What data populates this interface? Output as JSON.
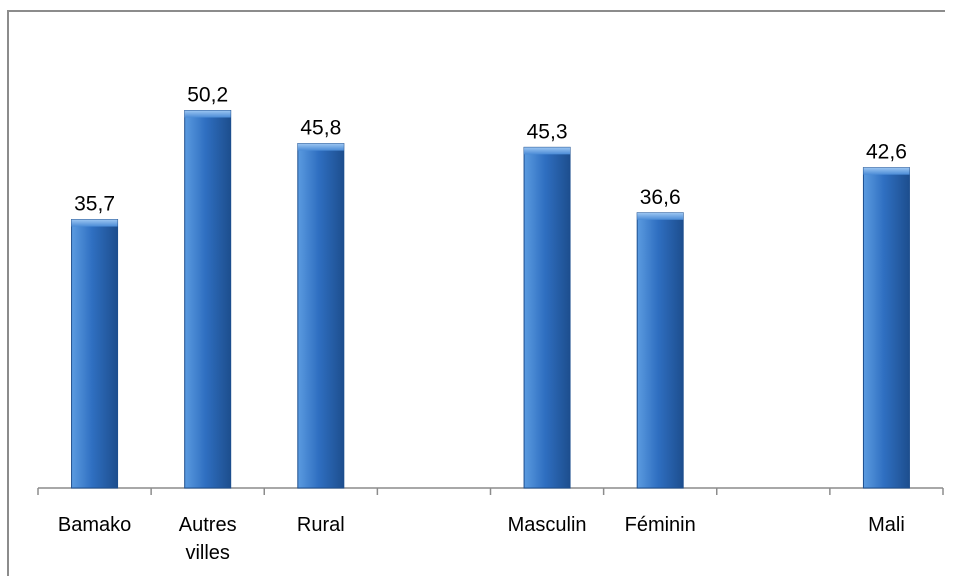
{
  "chart_data": {
    "type": "bar",
    "categories": [
      "Bamako",
      "Autres villes",
      "Rural",
      "",
      "Masculin",
      "Féminin",
      "",
      "Mali"
    ],
    "category_lines": [
      [
        "Bamako"
      ],
      [
        "Autres",
        "villes"
      ],
      [
        "Rural"
      ],
      [],
      [
        "Masculin"
      ],
      [
        "Féminin"
      ],
      [],
      [
        "Mali"
      ]
    ],
    "values": [
      35.7,
      50.2,
      45.8,
      null,
      45.3,
      36.6,
      null,
      42.6
    ],
    "data_labels": [
      "35,7",
      "50,2",
      "45,8",
      "",
      "45,3",
      "36,6",
      "",
      "42,6"
    ],
    "title": "",
    "xlabel": "",
    "ylabel": "",
    "ylim": [
      0,
      63.3
    ],
    "grid": false,
    "legend": "none",
    "colors": {
      "bar_light": "#5b9be0",
      "bar_mid": "#2f6fc1",
      "bar_dark": "#1d4e8e",
      "axis": "#8c8c8c",
      "frame": "#8c8c8c"
    }
  }
}
